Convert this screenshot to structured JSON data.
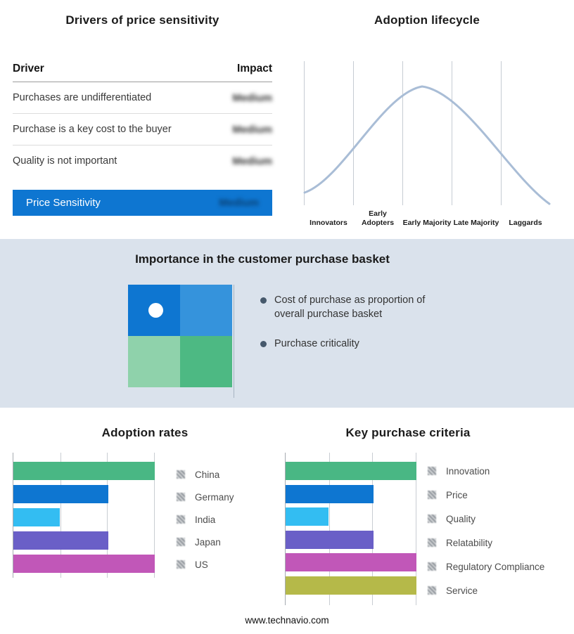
{
  "page": {
    "footer": "www.technavio.com"
  },
  "drivers": {
    "title": "Drivers of price sensitivity",
    "columns": {
      "driver": "Driver",
      "impact": "Impact"
    },
    "rows": [
      {
        "driver": "Purchases are undifferentiated",
        "impact": "Medium"
      },
      {
        "driver": "Purchase is a key cost to the buyer",
        "impact": "Medium"
      },
      {
        "driver": "Quality is not important",
        "impact": "Medium"
      }
    ],
    "summary": {
      "label": "Price Sensitivity",
      "impact": "Medium",
      "color": "#0e76d1"
    }
  },
  "purchase_basket": {
    "title": "Importance in the customer purchase basket",
    "bullets": [
      "Cost of purchase as proportion of overall purchase basket",
      "Purchase criticality"
    ],
    "band_color": "#dae2ec",
    "bullet_color": "#46596c",
    "quadrant": {
      "top_left": "#0e76d1",
      "top_right": "#3593dc",
      "bottom_left": "#8fd2ab",
      "bottom_right": "#4db983"
    }
  },
  "chart_data": [
    {
      "type": "line",
      "title": "Adoption lifecycle",
      "categories": [
        "Innovators",
        "Early Adopters",
        "Early Majority",
        "Late Majority",
        "Laggards"
      ],
      "description": "Bell-shaped adoption curve rising from Innovators, peaking over Early Majority, falling to Laggards",
      "curve_color": "#a9bdd6",
      "grid": true,
      "legend_position": "none"
    },
    {
      "type": "bar",
      "orientation": "horizontal",
      "title": "Adoption rates",
      "categories": [
        "China",
        "Germany",
        "India",
        "Japan",
        "US"
      ],
      "values": [
        100,
        67,
        33,
        67,
        100
      ],
      "xmax": 100,
      "colors": [
        "#49b784",
        "#0e76d1",
        "#33bdf2",
        "#6a5fc7",
        "#c157b8"
      ],
      "xlabel": "",
      "ylabel": "",
      "grid": true,
      "legend_position": "right"
    },
    {
      "type": "bar",
      "orientation": "horizontal",
      "title": "Key purchase criteria",
      "categories": [
        "Innovation",
        "Price",
        "Quality",
        "Relatability",
        "Regulatory Compliance",
        "Service"
      ],
      "values": [
        100,
        67,
        33,
        67,
        100,
        100
      ],
      "xmax": 100,
      "colors": [
        "#49b784",
        "#0e76d1",
        "#33bdf2",
        "#6a5fc7",
        "#c157b8",
        "#b5b949"
      ],
      "xlabel": "",
      "ylabel": "",
      "grid": true,
      "legend_position": "right"
    }
  ]
}
